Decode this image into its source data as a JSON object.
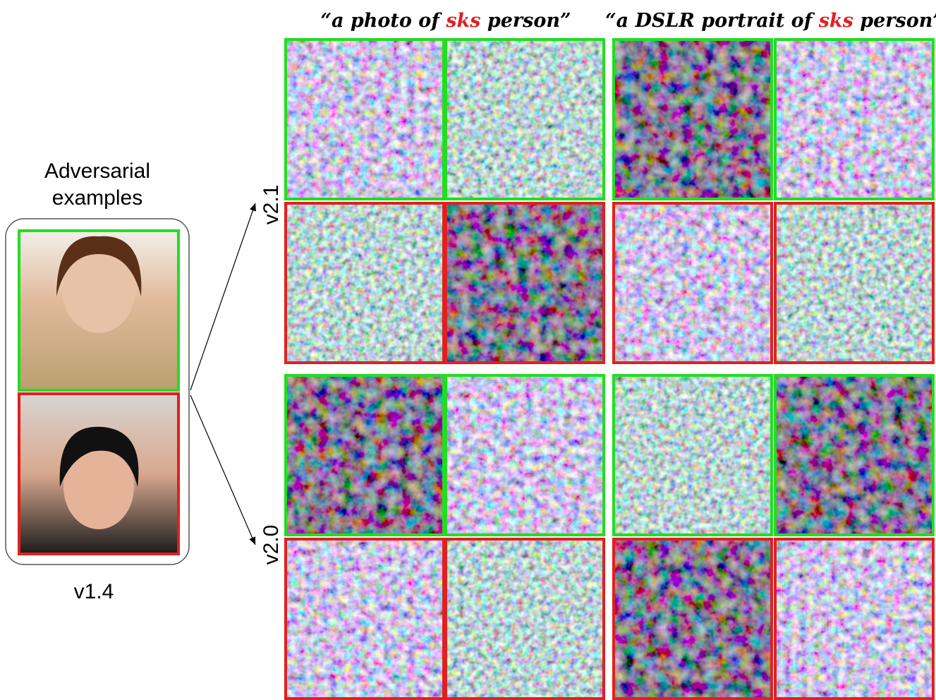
{
  "left_panel": {
    "title_line1": "Adversarial",
    "title_line2": "examples",
    "label": "v1.4"
  },
  "columns": [
    {
      "before": "“a photo of ",
      "highlight": "sks",
      "after": " person”"
    },
    {
      "before": "“a DSLR portrait of ",
      "highlight": "sks",
      "after": " person”"
    }
  ],
  "rows": [
    {
      "label": "v2.1"
    },
    {
      "label": "v2.0"
    }
  ]
}
